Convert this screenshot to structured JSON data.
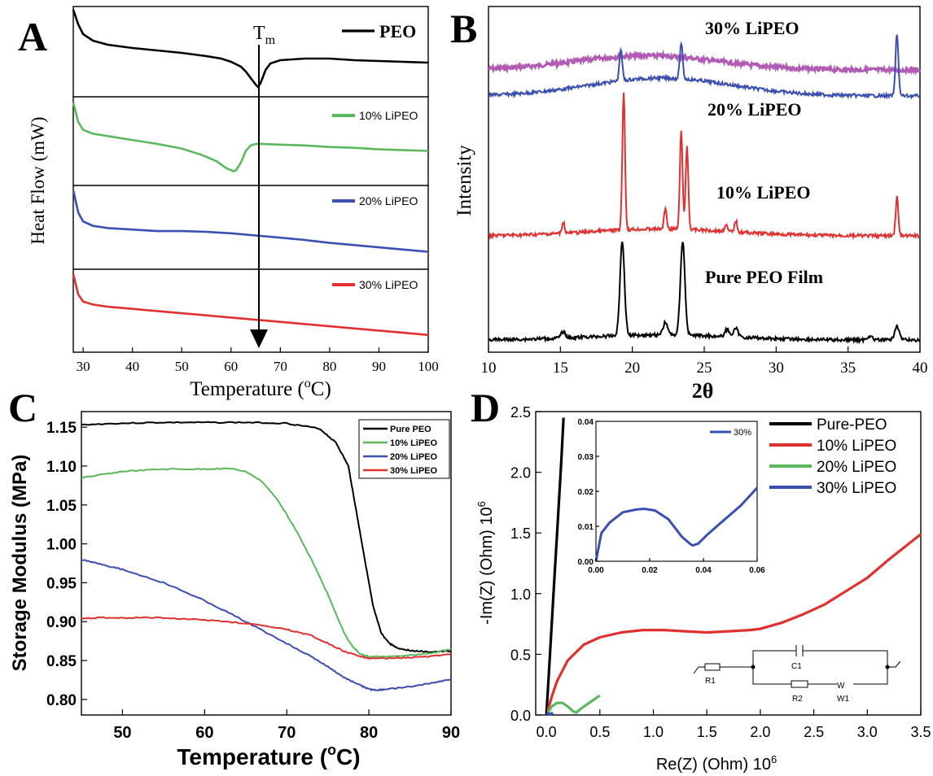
{
  "chart_data": [
    {
      "panel": "A",
      "type": "line",
      "annotation": "Tm",
      "xlabel": "Temperature (oC)",
      "xlabel_parts": [
        "Temperature (",
        "o",
        "C)"
      ],
      "ylabel": "Heat Flow (mW)",
      "xlim": [
        28,
        100
      ],
      "xticks": [
        30,
        40,
        50,
        60,
        70,
        80,
        90,
        100
      ],
      "series": [
        {
          "name": "PEO",
          "color": "#000000",
          "x": [
            28,
            29,
            30,
            32,
            35,
            40,
            45,
            50,
            55,
            58,
            60,
            62,
            63,
            64,
            65,
            65.5,
            66,
            67,
            68,
            70,
            75,
            80,
            85,
            90,
            95,
            100
          ],
          "y": [
            1.0,
            0.82,
            0.7,
            0.62,
            0.57,
            0.53,
            0.5,
            0.47,
            0.43,
            0.4,
            0.36,
            0.3,
            0.24,
            0.16,
            0.08,
            0.05,
            0.1,
            0.26,
            0.34,
            0.38,
            0.4,
            0.4,
            0.38,
            0.37,
            0.36,
            0.35
          ]
        },
        {
          "name": "10% LiPEO",
          "color": "#5cb85c",
          "x": [
            28,
            29,
            30,
            32,
            35,
            40,
            45,
            50,
            54,
            57,
            59,
            60.5,
            61,
            62,
            63,
            64,
            65,
            66,
            70,
            75,
            80,
            85,
            90,
            95,
            100
          ],
          "y": [
            1.0,
            0.75,
            0.65,
            0.6,
            0.57,
            0.52,
            0.47,
            0.41,
            0.33,
            0.25,
            0.16,
            0.12,
            0.13,
            0.23,
            0.38,
            0.45,
            0.47,
            0.47,
            0.46,
            0.45,
            0.43,
            0.42,
            0.4,
            0.39,
            0.38
          ]
        },
        {
          "name": "20% LiPEO",
          "color": "#3b4fb0",
          "x": [
            28,
            29,
            30,
            32,
            35,
            40,
            45,
            50,
            55,
            60,
            65,
            70,
            75,
            80,
            85,
            90,
            95,
            100
          ],
          "y": [
            1.0,
            0.7,
            0.58,
            0.52,
            0.49,
            0.47,
            0.45,
            0.45,
            0.44,
            0.42,
            0.39,
            0.36,
            0.33,
            0.29,
            0.26,
            0.23,
            0.2,
            0.17
          ]
        },
        {
          "name": "30% LiPEO",
          "color": "#e03030",
          "x": [
            28,
            29,
            30,
            32,
            35,
            40,
            45,
            50,
            55,
            60,
            65,
            70,
            75,
            80,
            85,
            90,
            95,
            100
          ],
          "y": [
            1.0,
            0.72,
            0.62,
            0.58,
            0.55,
            0.52,
            0.49,
            0.46,
            0.43,
            0.4,
            0.37,
            0.34,
            0.31,
            0.28,
            0.25,
            0.22,
            0.19,
            0.16
          ]
        }
      ]
    },
    {
      "panel": "B",
      "type": "line",
      "xlabel": "2θ",
      "ylabel": "Intensity",
      "xlim": [
        10,
        40
      ],
      "xticks": [
        10,
        15,
        20,
        25,
        30,
        35,
        40
      ],
      "series": [
        {
          "name": "30% LiPEO",
          "color": "#b15bb5",
          "peaks": [],
          "hump": [
            21,
            0.55
          ]
        },
        {
          "name": "20% LiPEO",
          "color": "#3b4fb0",
          "peaks": [
            [
              19.2,
              0.35
            ],
            [
              23.4,
              0.4
            ],
            [
              38.4,
              0.7
            ]
          ],
          "hump": [
            22,
            0.2
          ]
        },
        {
          "name": "10% LiPEO",
          "color": "#e03030",
          "peaks": [
            [
              15.2,
              0.08
            ],
            [
              19.4,
              1.0
            ],
            [
              22.3,
              0.15
            ],
            [
              23.4,
              0.72
            ],
            [
              23.8,
              0.6
            ],
            [
              26.5,
              0.05
            ],
            [
              27.2,
              0.08
            ],
            [
              38.4,
              0.28
            ]
          ],
          "hump": [
            22,
            0.05
          ]
        },
        {
          "name": "Pure PEO Film",
          "color": "#000000",
          "peaks": [
            [
              15.2,
              0.06
            ],
            [
              19.3,
              0.9
            ],
            [
              22.3,
              0.12
            ],
            [
              23.5,
              0.9
            ],
            [
              26.6,
              0.07
            ],
            [
              27.2,
              0.08
            ],
            [
              36.5,
              0.04
            ],
            [
              38.4,
              0.14
            ]
          ],
          "hump": [
            22,
            0.05
          ]
        }
      ]
    },
    {
      "panel": "C",
      "type": "line",
      "xlabel": "Temperature (oC)",
      "xlabel_parts": [
        "Temperature (",
        "o",
        "C)"
      ],
      "ylabel": "Storage Modulus (MPa)",
      "xlim": [
        45,
        90
      ],
      "ylim": [
        0.78,
        1.17
      ],
      "xticks": [
        50,
        60,
        70,
        80,
        90
      ],
      "yticks": [
        0.8,
        0.85,
        0.9,
        0.95,
        1.0,
        1.05,
        1.1,
        1.15
      ],
      "legend_position": "top-right",
      "series": [
        {
          "name": "Pure PEO",
          "color": "#000000",
          "x": [
            45,
            50,
            55,
            60,
            65,
            70,
            74,
            76,
            77.5,
            78.5,
            79.5,
            80.5,
            81.5,
            82.5,
            83.5,
            85,
            87,
            90
          ],
          "y": [
            1.153,
            1.155,
            1.156,
            1.156,
            1.156,
            1.155,
            1.148,
            1.13,
            1.1,
            1.04,
            0.98,
            0.92,
            0.885,
            0.872,
            0.866,
            0.863,
            0.861,
            0.862
          ]
        },
        {
          "name": "10% LiPEO",
          "color": "#5cb85c",
          "x": [
            45,
            47,
            50,
            55,
            60,
            63,
            65,
            67,
            69,
            71,
            73,
            75,
            76,
            77,
            78,
            79,
            80,
            82,
            85,
            88,
            90
          ],
          "y": [
            1.085,
            1.088,
            1.093,
            1.096,
            1.096,
            1.097,
            1.093,
            1.08,
            1.055,
            1.02,
            0.98,
            0.935,
            0.91,
            0.885,
            0.868,
            0.858,
            0.855,
            0.855,
            0.857,
            0.86,
            0.865
          ]
        },
        {
          "name": "20% LiPEO",
          "color": "#3b4fb0",
          "x": [
            45,
            47,
            50,
            55,
            60,
            65,
            70,
            73,
            75,
            77,
            79,
            80,
            81,
            82,
            84,
            86,
            88,
            90
          ],
          "y": [
            0.98,
            0.975,
            0.967,
            0.95,
            0.927,
            0.9,
            0.872,
            0.855,
            0.842,
            0.828,
            0.818,
            0.813,
            0.812,
            0.813,
            0.815,
            0.818,
            0.822,
            0.826
          ]
        },
        {
          "name": "30% LiPEO",
          "color": "#e03030",
          "x": [
            45,
            47,
            50,
            55,
            60,
            65,
            70,
            73,
            75,
            77,
            79,
            80,
            82,
            85,
            88,
            90
          ],
          "y": [
            0.904,
            0.905,
            0.905,
            0.905,
            0.902,
            0.898,
            0.89,
            0.882,
            0.872,
            0.862,
            0.855,
            0.853,
            0.853,
            0.854,
            0.856,
            0.858
          ]
        }
      ]
    },
    {
      "panel": "D",
      "type": "line",
      "xlabel": "Re(Z) (Ohm) 10",
      "xlabel_exp": "6",
      "ylabel": "-Im(Z) (Ohm) 10",
      "ylabel_exp": "6",
      "xlim": [
        -0.1,
        3.5
      ],
      "ylim": [
        0,
        2.5
      ],
      "xticks": [
        0.0,
        0.5,
        1.0,
        1.5,
        2.0,
        2.5,
        3.0,
        3.5
      ],
      "yticks": [
        0.0,
        0.5,
        1.0,
        1.5,
        2.0,
        2.5
      ],
      "legend_position": "top-right",
      "series": [
        {
          "name": "Pure-PEO",
          "color": "#000000",
          "x": [
            0.0,
            0.02,
            0.04,
            0.06,
            0.08,
            0.1,
            0.12,
            0.14,
            0.16
          ],
          "y": [
            0.0,
            0.3,
            0.6,
            0.9,
            1.2,
            1.5,
            1.8,
            2.1,
            2.45
          ]
        },
        {
          "name": "10% LiPEO",
          "color": "#e03030",
          "x": [
            0.0,
            0.05,
            0.1,
            0.2,
            0.35,
            0.5,
            0.7,
            0.9,
            1.1,
            1.3,
            1.5,
            1.7,
            1.9,
            2.0,
            2.2,
            2.4,
            2.6,
            2.8,
            3.0,
            3.2,
            3.5
          ],
          "y": [
            0.0,
            0.15,
            0.28,
            0.45,
            0.58,
            0.64,
            0.68,
            0.7,
            0.7,
            0.69,
            0.68,
            0.69,
            0.7,
            0.71,
            0.76,
            0.83,
            0.91,
            1.02,
            1.13,
            1.28,
            1.49
          ]
        },
        {
          "name": "20% LiPEO",
          "color": "#5cb85c",
          "x": [
            0.0,
            0.05,
            0.1,
            0.15,
            0.2,
            0.25,
            0.28,
            0.32,
            0.4,
            0.5
          ],
          "y": [
            0.0,
            0.07,
            0.1,
            0.1,
            0.07,
            0.03,
            0.02,
            0.05,
            0.1,
            0.16
          ]
        },
        {
          "name": "30% LiPEO",
          "color": "#3b4fb0",
          "x": [
            0.0,
            0.02,
            0.036,
            0.05,
            0.06
          ],
          "y": [
            0.0,
            0.015,
            0.005,
            0.013,
            0.02
          ]
        }
      ],
      "inset": {
        "legend": "30%",
        "xlim": [
          0,
          0.06
        ],
        "ylim": [
          0,
          0.04
        ],
        "xticks": [
          "0.00",
          "0.02",
          "0.04",
          "0.06"
        ],
        "yticks": [
          "0.00",
          "0.01",
          "0.02",
          "0.03",
          "0.04"
        ],
        "x": [
          0.0,
          0.002,
          0.005,
          0.01,
          0.015,
          0.018,
          0.022,
          0.027,
          0.032,
          0.035,
          0.036,
          0.038,
          0.042,
          0.048,
          0.054,
          0.06
        ],
        "y": [
          0.0,
          0.008,
          0.011,
          0.014,
          0.0148,
          0.015,
          0.0145,
          0.012,
          0.007,
          0.005,
          0.0045,
          0.005,
          0.008,
          0.012,
          0.016,
          0.021
        ],
        "color": "#3b4fb0"
      },
      "circuit": {
        "labels": [
          "R1",
          "C1",
          "R2",
          "W",
          "W1"
        ]
      }
    }
  ],
  "panel_letters": [
    "A",
    "B",
    "C",
    "D"
  ]
}
